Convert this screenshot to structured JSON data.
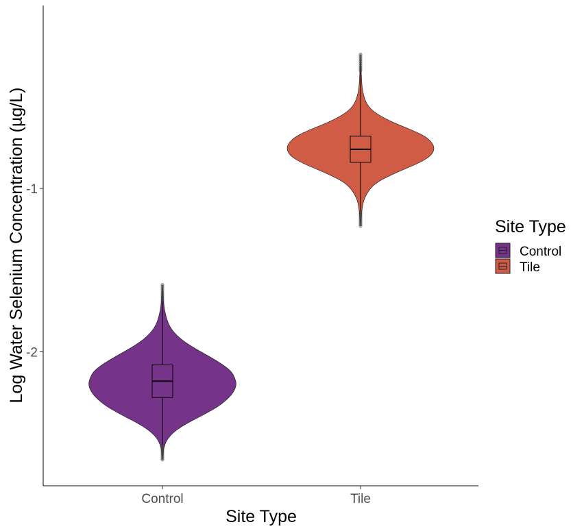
{
  "chart_data": {
    "type": "violin",
    "title": "",
    "xlabel": "Site Type",
    "ylabel": "Log Water Selenium Concentration (µg/L)",
    "ylim": [
      -2.82,
      0.12
    ],
    "y_ticks": [
      {
        "value": -1,
        "label": "-1"
      },
      {
        "value": -2,
        "label": "-2"
      }
    ],
    "grid": false,
    "categories": [
      "Control",
      "Tile"
    ],
    "legend": {
      "title": "Site Type",
      "position": "right",
      "entries": [
        {
          "label": "Control",
          "color": "#76338a"
        },
        {
          "label": "Tile",
          "color": "#d05c45"
        }
      ]
    },
    "series": [
      {
        "name": "Control",
        "color": "#76338a",
        "min": -2.66,
        "max": -1.59,
        "box": {
          "q1": -2.28,
          "median": -2.18,
          "q3": -2.08
        },
        "density_profile": [
          [
            -2.66,
            0.0
          ],
          [
            -2.58,
            0.02
          ],
          [
            -2.53,
            0.07
          ],
          [
            -2.48,
            0.18
          ],
          [
            -2.43,
            0.36
          ],
          [
            -2.38,
            0.58
          ],
          [
            -2.33,
            0.77
          ],
          [
            -2.28,
            0.9
          ],
          [
            -2.24,
            0.97
          ],
          [
            -2.2,
            1.0
          ],
          [
            -2.16,
            0.98
          ],
          [
            -2.12,
            0.93
          ],
          [
            -2.08,
            0.82
          ],
          [
            -2.03,
            0.64
          ],
          [
            -1.98,
            0.44
          ],
          [
            -1.93,
            0.27
          ],
          [
            -1.88,
            0.15
          ],
          [
            -1.83,
            0.08
          ],
          [
            -1.77,
            0.04
          ],
          [
            -1.72,
            0.02
          ],
          [
            -1.59,
            0.0
          ]
        ]
      },
      {
        "name": "Tile",
        "color": "#d05c45",
        "min": -1.23,
        "max": -0.18,
        "box": {
          "q1": -0.84,
          "median": -0.76,
          "q3": -0.68
        },
        "density_profile": [
          [
            -1.23,
            0.0
          ],
          [
            -1.12,
            0.02
          ],
          [
            -1.06,
            0.05
          ],
          [
            -1.0,
            0.13
          ],
          [
            -0.96,
            0.23
          ],
          [
            -0.92,
            0.4
          ],
          [
            -0.88,
            0.6
          ],
          [
            -0.84,
            0.81
          ],
          [
            -0.8,
            0.95
          ],
          [
            -0.76,
            1.0
          ],
          [
            -0.72,
            0.97
          ],
          [
            -0.68,
            0.87
          ],
          [
            -0.64,
            0.68
          ],
          [
            -0.6,
            0.46
          ],
          [
            -0.56,
            0.28
          ],
          [
            -0.52,
            0.15
          ],
          [
            -0.48,
            0.08
          ],
          [
            -0.43,
            0.04
          ],
          [
            -0.38,
            0.02
          ],
          [
            -0.3,
            0.01
          ],
          [
            -0.18,
            0.0
          ]
        ]
      }
    ]
  }
}
